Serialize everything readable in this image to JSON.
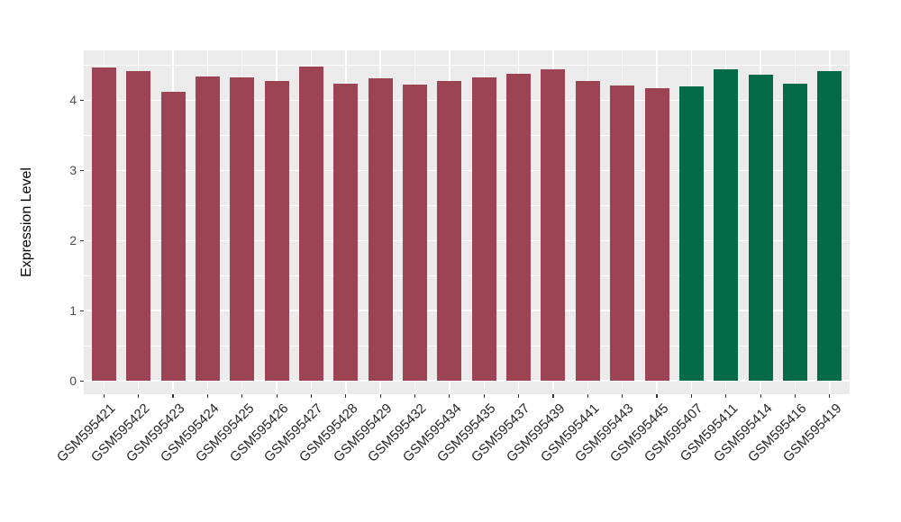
{
  "figure": {
    "background": "#FFFFFF",
    "panel_background": "#EBEBEB",
    "grid_color": "#FFFFFF"
  },
  "chart_data": {
    "type": "bar",
    "title": "",
    "xlabel": "",
    "ylabel": "Expression Level",
    "legend": "none",
    "grid": true,
    "yticks": [
      0,
      1,
      2,
      3,
      4
    ],
    "ylim": [
      -0.19,
      4.71
    ],
    "categories": [
      "GSM595421",
      "GSM595422",
      "GSM595423",
      "GSM595424",
      "GSM595425",
      "GSM595426",
      "GSM595427",
      "GSM595428",
      "GSM595429",
      "GSM595432",
      "GSM595434",
      "GSM595435",
      "GSM595437",
      "GSM595439",
      "GSM595441",
      "GSM595443",
      "GSM595445",
      "GSM595407",
      "GSM595411",
      "GSM595414",
      "GSM595416",
      "GSM595419"
    ],
    "values": [
      4.47,
      4.41,
      4.12,
      4.34,
      4.33,
      4.27,
      4.48,
      4.23,
      4.31,
      4.22,
      4.27,
      4.32,
      4.38,
      4.44,
      4.28,
      4.21,
      4.17,
      4.2,
      4.44,
      4.36,
      4.23,
      4.42
    ],
    "groups": [
      0,
      0,
      0,
      0,
      0,
      0,
      0,
      0,
      0,
      0,
      0,
      0,
      0,
      0,
      0,
      0,
      0,
      1,
      1,
      1,
      1,
      1
    ],
    "group_colors": [
      "#9C4453",
      "#046A47"
    ]
  }
}
